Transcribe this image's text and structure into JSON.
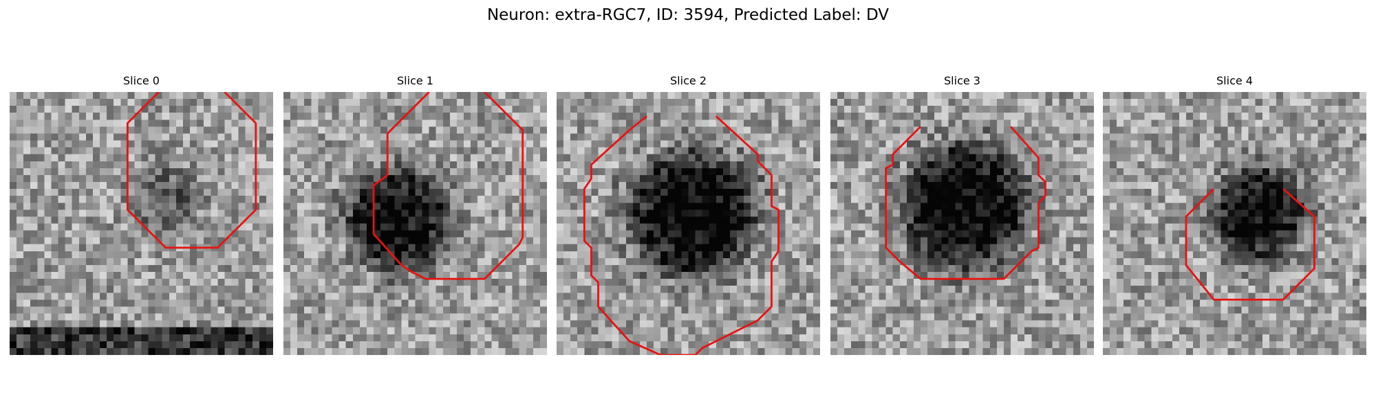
{
  "figure": {
    "title": "Neuron: extra-RGC7, ID: 3594, Predicted Label: DV"
  },
  "panels": [
    {
      "title": "Slice 0",
      "contour": [
        [
          21.5,
          0
        ],
        [
          17,
          4.5
        ],
        [
          17,
          17
        ],
        [
          22.5,
          22.5
        ],
        [
          30,
          22.5
        ],
        [
          35.5,
          17
        ],
        [
          35.5,
          4.5
        ],
        [
          31,
          0
        ]
      ],
      "dark_blob": {
        "cx": 22,
        "cy": 15,
        "r": 6,
        "strength": 0.25
      },
      "bottom_band": true
    },
    {
      "title": "Slice 1",
      "contour": [
        [
          21,
          0
        ],
        [
          15,
          6
        ],
        [
          15,
          12
        ],
        [
          13,
          13.5
        ],
        [
          13,
          20.5
        ],
        [
          17,
          25
        ],
        [
          18.5,
          26
        ],
        [
          20.5,
          27
        ],
        [
          29,
          27
        ],
        [
          34,
          22
        ],
        [
          34.5,
          21
        ],
        [
          34.5,
          5.5
        ],
        [
          29,
          0
        ]
      ],
      "dark_blob": {
        "cx": 16,
        "cy": 18,
        "r": 9,
        "strength": 0.6
      },
      "bottom_band": false
    },
    {
      "title": "Slice 2",
      "contour": [
        [
          13,
          3.5
        ],
        [
          10.5,
          5.5
        ],
        [
          5,
          10.5
        ],
        [
          5,
          12.5
        ],
        [
          4,
          14
        ],
        [
          4,
          21.5
        ],
        [
          5,
          22.5
        ],
        [
          5,
          26.5
        ],
        [
          6,
          27.5
        ],
        [
          6,
          31
        ],
        [
          10.5,
          36
        ],
        [
          15,
          38
        ],
        [
          20,
          38
        ],
        [
          21,
          37
        ],
        [
          29,
          33
        ],
        [
          31,
          31
        ],
        [
          31,
          24.5
        ],
        [
          32,
          23
        ],
        [
          32,
          17
        ],
        [
          31,
          16.5
        ],
        [
          31,
          12
        ],
        [
          29,
          10
        ],
        [
          29,
          9
        ],
        [
          23,
          3.5
        ]
      ],
      "dark_blob": {
        "cx": 19,
        "cy": 17,
        "r": 11,
        "strength": 0.65
      },
      "bottom_band": false
    },
    {
      "title": "Slice 3",
      "contour": [
        [
          13,
          5
        ],
        [
          9,
          9
        ],
        [
          9,
          10.5
        ],
        [
          8,
          11
        ],
        [
          8,
          22.5
        ],
        [
          10,
          24.5
        ],
        [
          13,
          27
        ],
        [
          25,
          27
        ],
        [
          29,
          23
        ],
        [
          30,
          22.5
        ],
        [
          30,
          16
        ],
        [
          31,
          15
        ],
        [
          31,
          13
        ],
        [
          30,
          12
        ],
        [
          30,
          9.5
        ],
        [
          26,
          5
        ]
      ],
      "dark_blob": {
        "cx": 19,
        "cy": 16,
        "r": 11,
        "strength": 0.65
      },
      "bottom_band": false
    },
    {
      "title": "Slice 4",
      "contour": [
        [
          16,
          14
        ],
        [
          12,
          18
        ],
        [
          12,
          25
        ],
        [
          16,
          30
        ],
        [
          26,
          30
        ],
        [
          30.5,
          25.5
        ],
        [
          30.5,
          18
        ],
        [
          26,
          14
        ]
      ],
      "dark_blob": {
        "cx": 22,
        "cy": 17,
        "r": 8,
        "strength": 0.6
      },
      "bottom_band": false
    }
  ]
}
